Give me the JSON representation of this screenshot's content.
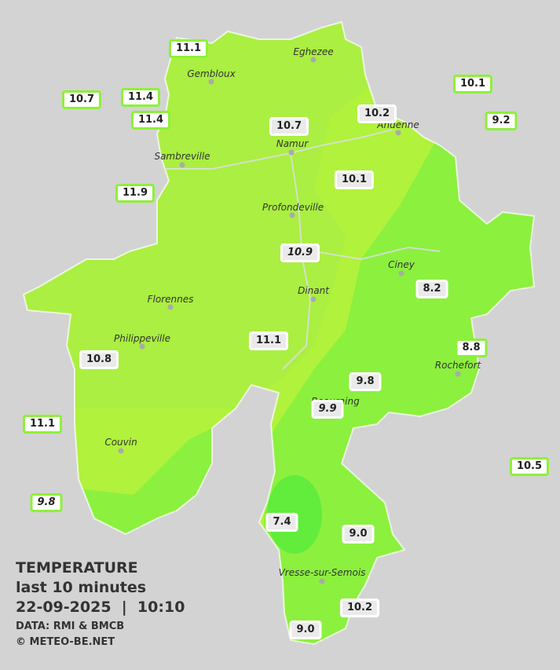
{
  "legend": {
    "title": "TEMPERATURE",
    "subtitle": "last 10 minutes",
    "datetime": "22-09-2025  |  10:10",
    "source": "DATA: RMI & BMCB",
    "credit": "© METEO-BE.NET"
  },
  "stations": [
    "11.1",
    "10.7",
    "11.4",
    "11.4",
    "10.1",
    "9.2",
    "10.2",
    "10.7",
    "11.9",
    "10.1",
    "10.9",
    "8.2",
    "11.1",
    "10.8",
    "8.8",
    "9.8",
    "9.9",
    "11.1",
    "10.5",
    "9.8",
    "7.4",
    "9.0",
    "10.2",
    "9.0"
  ],
  "cities": [
    "Eghezee",
    "Gembloux",
    "Andenne",
    "Namur",
    "Sambreville",
    "Profondeville",
    "Ciney",
    "Dinant",
    "Florennes",
    "Philippeville",
    "Rochefort",
    "Beauraing",
    "Couvin",
    "Vresse-sur-Semois"
  ]
}
